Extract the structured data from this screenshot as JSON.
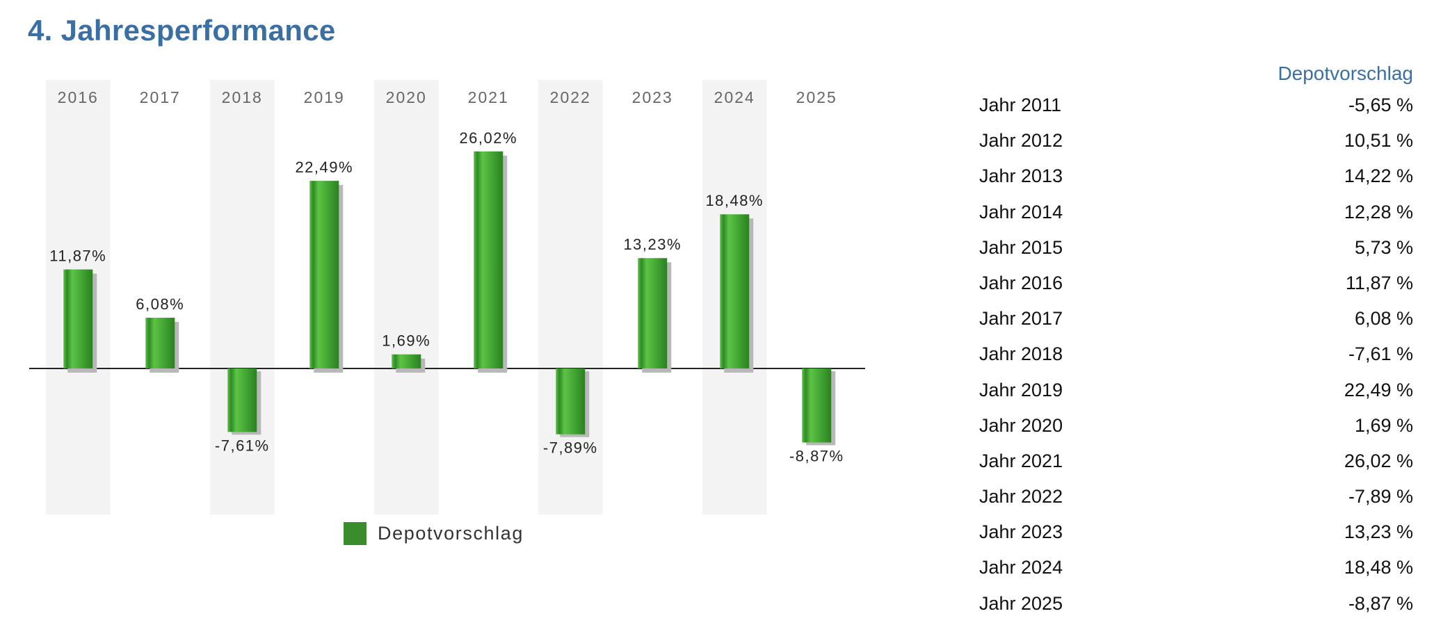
{
  "page": {
    "title": "4. Jahresperformance"
  },
  "chart_data": {
    "type": "bar",
    "categories": [
      "2016",
      "2017",
      "2018",
      "2019",
      "2020",
      "2021",
      "2022",
      "2023",
      "2024",
      "2025"
    ],
    "series": [
      {
        "name": "Depotvorschlag",
        "values": [
          11.87,
          6.08,
          -7.61,
          22.49,
          1.69,
          26.02,
          -7.89,
          13.23,
          18.48,
          -8.87
        ],
        "labels": [
          "11,87%",
          "6,08%",
          "-7,61%",
          "22,49%",
          "1,69%",
          "26,02%",
          "-7,89%",
          "13,23%",
          "18,48%",
          "-8,87%"
        ]
      }
    ],
    "legend": "bottom",
    "grid": false,
    "ylim": [
      -17,
      33
    ],
    "colors": {
      "bar": "#3a9a2e",
      "bar_light": "#5cc445",
      "shadow": "#b8b8b8",
      "band": "#f4f3f3"
    }
  },
  "legend": {
    "label": "Depotvorschlag"
  },
  "table": {
    "header": "Depotvorschlag",
    "rows": [
      {
        "year": "Jahr 2011",
        "value": "-5,65 %"
      },
      {
        "year": "Jahr 2012",
        "value": "10,51 %"
      },
      {
        "year": "Jahr 2013",
        "value": "14,22 %"
      },
      {
        "year": "Jahr 2014",
        "value": "12,28 %"
      },
      {
        "year": "Jahr 2015",
        "value": "5,73 %"
      },
      {
        "year": "Jahr 2016",
        "value": "11,87 %"
      },
      {
        "year": "Jahr 2017",
        "value": "6,08 %"
      },
      {
        "year": "Jahr 2018",
        "value": "-7,61 %"
      },
      {
        "year": "Jahr 2019",
        "value": "22,49 %"
      },
      {
        "year": "Jahr 2020",
        "value": "1,69 %"
      },
      {
        "year": "Jahr 2021",
        "value": "26,02 %"
      },
      {
        "year": "Jahr 2022",
        "value": "-7,89 %"
      },
      {
        "year": "Jahr 2023",
        "value": "13,23 %"
      },
      {
        "year": "Jahr 2024",
        "value": "18,48 %"
      },
      {
        "year": "Jahr 2025",
        "value": "-8,87 %"
      }
    ]
  }
}
